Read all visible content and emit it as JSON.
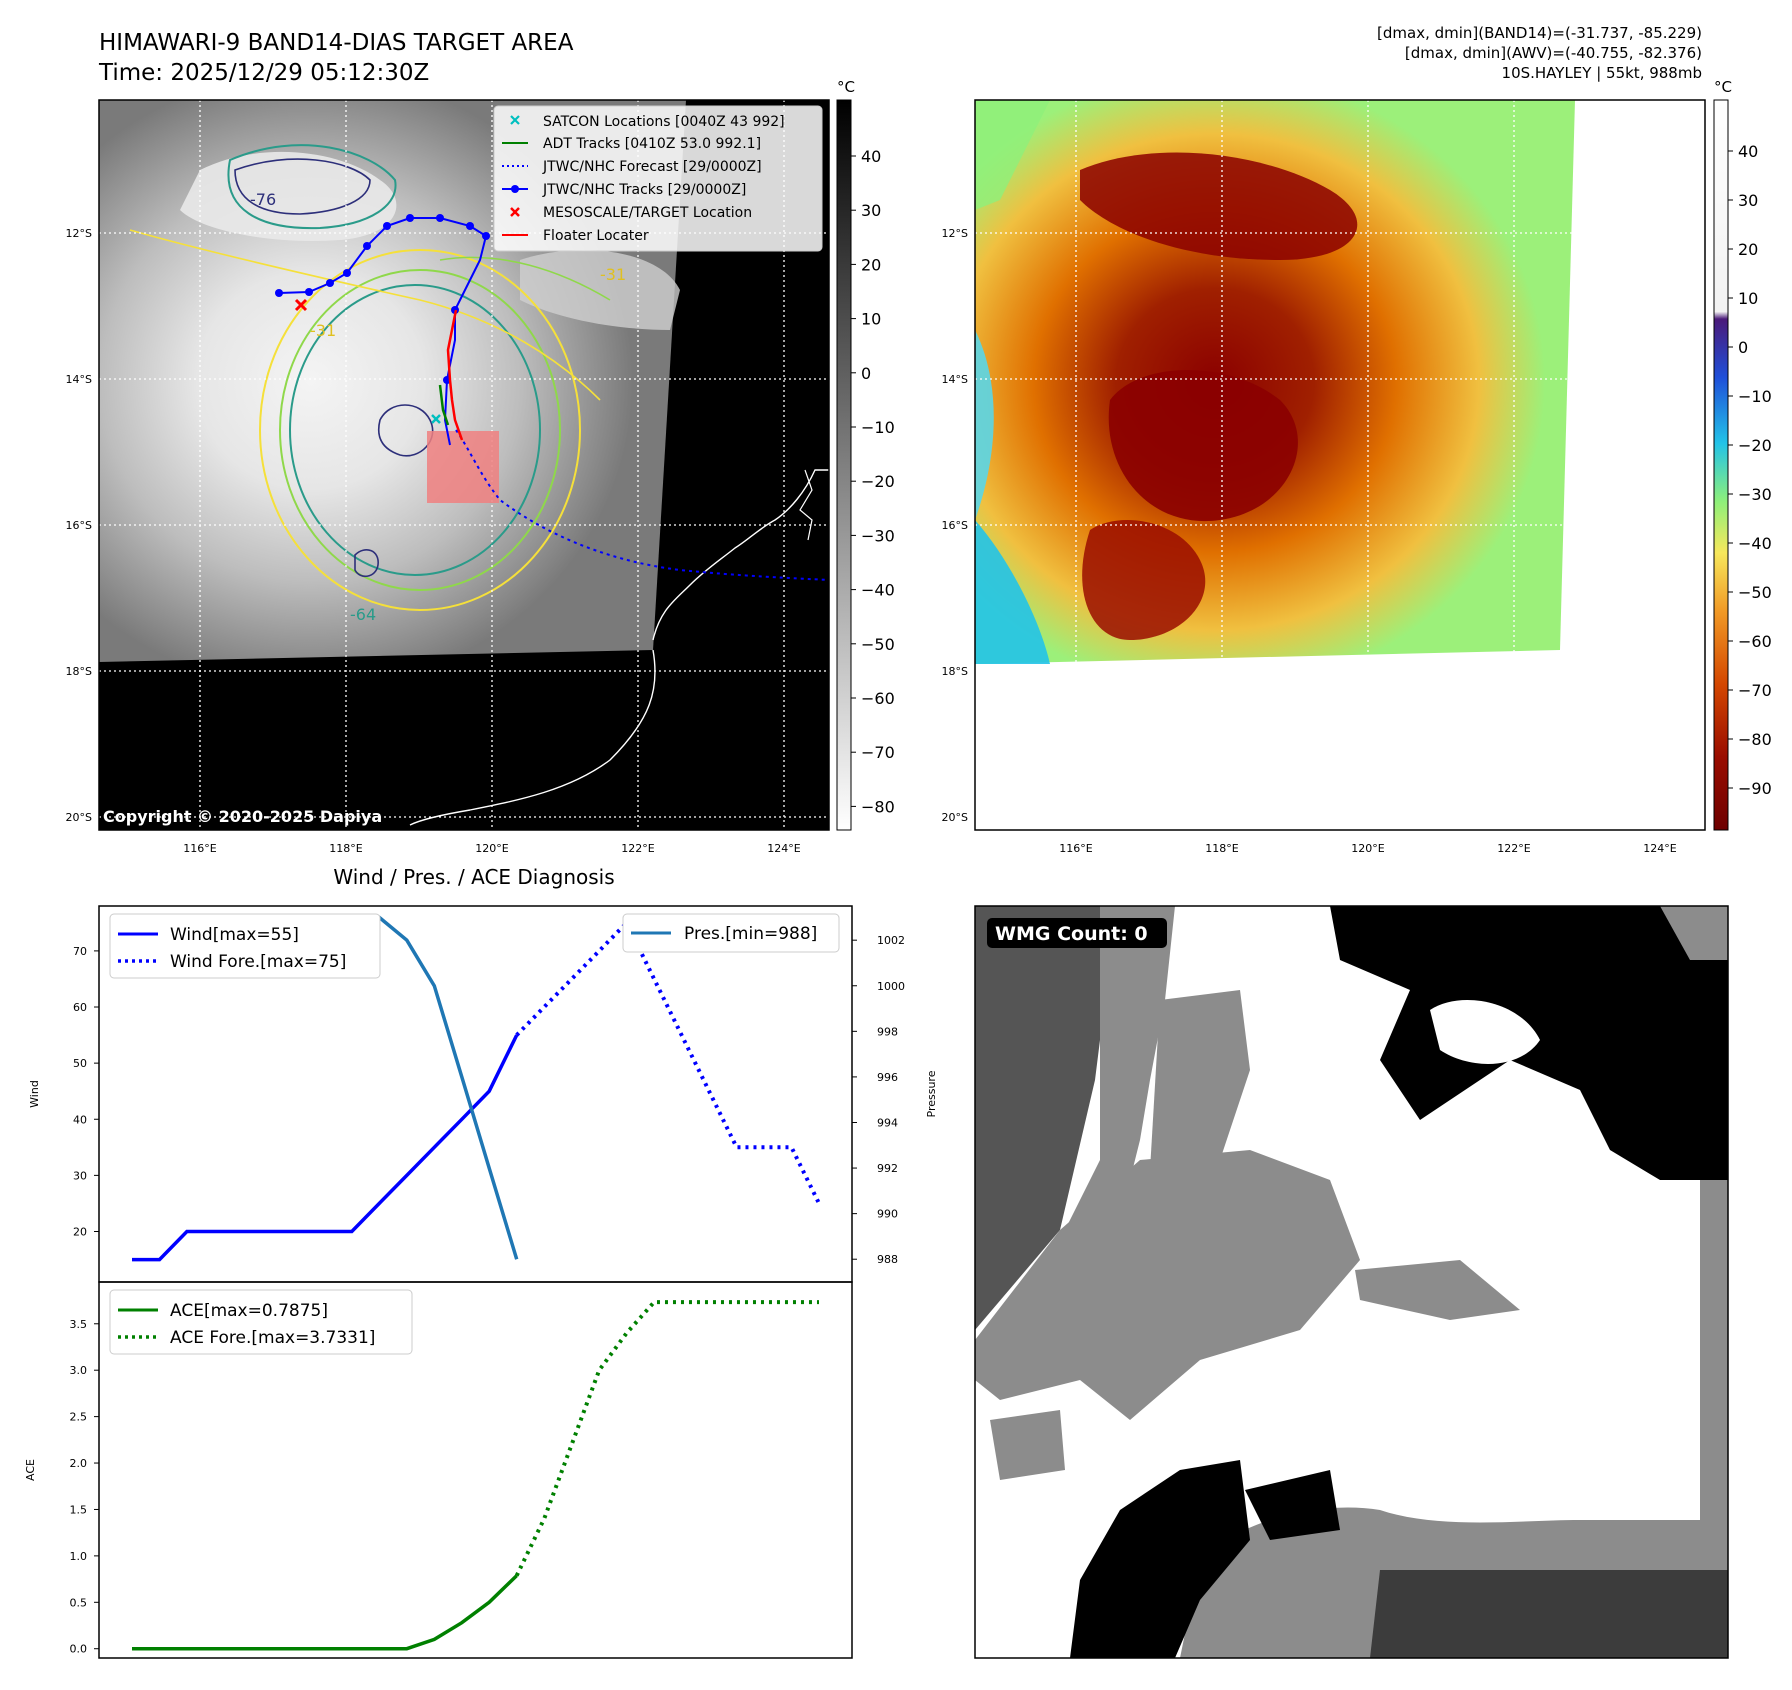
{
  "header": {
    "title_line1": "HIMAWARI-9 BAND14-DIAS TARGET AREA",
    "title_line2": "Time: 2025/12/29 05:12:30Z",
    "info_line1": "[dmax, dmin](BAND14)=(-31.737, -85.229)",
    "info_line2": "[dmax, dmin](AWV)=(-40.755, -82.376)",
    "info_line3": "10S.HAYLEY | 55kt, 988mb"
  },
  "map": {
    "lat_labels": [
      "12°S",
      "14°S",
      "16°S",
      "18°S",
      "20°S"
    ],
    "lon_labels": [
      "116°E",
      "118°E",
      "120°E",
      "122°E",
      "124°E"
    ],
    "copyright": "Copyright © 2020-2025 Dapiya",
    "contour_labels": [
      "-76",
      "-31",
      "-31",
      "-64"
    ],
    "legend": [
      {
        "label": "SATCON Locations [0040Z 43 992]",
        "color": "#00bfbf"
      },
      {
        "label": "ADT Tracks [0410Z 53.0 992.1]",
        "color": "#008000"
      },
      {
        "label": "JTWC/NHC Forecast [29/0000Z]",
        "color": "#0000ff"
      },
      {
        "label": "JTWC/NHC Tracks [29/0000Z]",
        "color": "#0000ff"
      },
      {
        "label": "MESOSCALE/TARGET Location",
        "color": "#ff0000"
      },
      {
        "label": "Floater Locater",
        "color": "#ff0000"
      }
    ]
  },
  "colorbar_left": {
    "unit": "°C",
    "ticks": [
      "40",
      "30",
      "20",
      "10",
      "0",
      "−10",
      "−20",
      "−30",
      "−40",
      "−50",
      "−60",
      "−70",
      "−80"
    ]
  },
  "colorbar_right": {
    "unit": "°C",
    "ticks": [
      "40",
      "30",
      "20",
      "10",
      "0",
      "−10",
      "−20",
      "−30",
      "−40",
      "−50",
      "−60",
      "−70",
      "−80",
      "−90"
    ]
  },
  "wmg": {
    "label": "WMG Count: 0"
  },
  "chart_data": [
    {
      "type": "line",
      "title": "Wind / Pres. / ACE Diagnosis",
      "xlabel": "",
      "ylabel": "Wind",
      "ylabel_right": "Pressure",
      "ylim": [
        11,
        78
      ],
      "ylim_right": [
        987,
        1003.5
      ],
      "yticks": [
        20,
        30,
        40,
        50,
        60,
        70
      ],
      "yticks_right": [
        988,
        990,
        992,
        994,
        996,
        998,
        1000,
        1002
      ],
      "x": [
        0,
        1,
        2,
        3,
        4,
        5,
        6,
        7,
        8,
        9,
        10,
        11,
        12,
        13,
        14,
        15,
        16,
        17,
        18,
        19,
        20,
        21,
        22,
        23,
        24,
        25
      ],
      "series": [
        {
          "name": "Wind[max=55]",
          "axis": "left",
          "style": "solid",
          "color": "#0000ff",
          "x": [
            0,
            1,
            2,
            3,
            4,
            5,
            6,
            7,
            8,
            9,
            10,
            11,
            12,
            13,
            14
          ],
          "values": [
            15,
            15,
            20,
            20,
            20,
            20,
            20,
            20,
            20,
            25,
            30,
            35,
            40,
            45,
            55
          ]
        },
        {
          "name": "Wind Fore.[max=75]",
          "axis": "left",
          "style": "dotted",
          "color": "#0000ff",
          "x": [
            14,
            15,
            16,
            17,
            18,
            19,
            20,
            21,
            22,
            23,
            24,
            25
          ],
          "values": [
            55,
            60,
            65,
            70,
            75,
            65,
            55,
            45,
            35,
            35,
            35,
            25
          ]
        },
        {
          "name": "Pres.[min=988]",
          "axis": "right",
          "style": "solid",
          "color": "#1f77b4",
          "x": [
            0,
            1,
            2,
            3,
            4,
            5,
            6,
            7,
            8,
            9,
            10,
            11,
            12,
            13,
            14
          ],
          "values": [
            1003,
            1003,
            1003,
            1003,
            1003,
            1003,
            1003,
            1003,
            1003,
            1003,
            1002,
            1000,
            996,
            992,
            988
          ]
        }
      ]
    },
    {
      "type": "line",
      "title": "",
      "xlabel": "",
      "ylabel": "ACE",
      "ylim": [
        -0.1,
        3.95
      ],
      "yticks": [
        0.0,
        0.5,
        1.0,
        1.5,
        2.0,
        2.5,
        3.0,
        3.5
      ],
      "ytick_labels": [
        "0.0",
        "0.5",
        "1.0",
        "1.5",
        "2.0",
        "2.5",
        "3.0",
        "3.5"
      ],
      "series": [
        {
          "name": "ACE[max=0.7875]",
          "style": "solid",
          "color": "#008000",
          "x": [
            0,
            1,
            2,
            3,
            4,
            5,
            6,
            7,
            8,
            9,
            10,
            11,
            12,
            13,
            14
          ],
          "values": [
            0,
            0,
            0,
            0,
            0,
            0,
            0,
            0,
            0,
            0,
            0,
            0.1,
            0.28,
            0.5,
            0.7875
          ]
        },
        {
          "name": "ACE Fore.[max=3.7331]",
          "style": "dotted",
          "color": "#008000",
          "x": [
            14,
            15,
            16,
            17,
            18,
            19,
            20,
            21,
            22,
            23,
            24,
            25
          ],
          "values": [
            0.7875,
            1.4,
            2.2,
            3.0,
            3.4,
            3.7331,
            3.7331,
            3.7331,
            3.7331,
            3.7331,
            3.7331,
            3.7331
          ]
        }
      ]
    }
  ]
}
